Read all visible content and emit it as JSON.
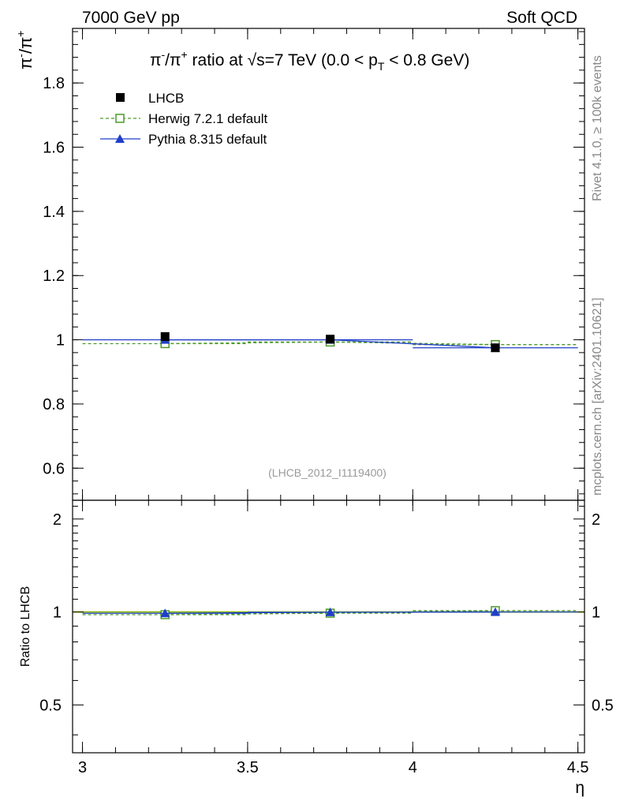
{
  "header": {
    "left": "7000 GeV pp",
    "right": "Soft QCD"
  },
  "side_labels": {
    "rivet": "Rivet 4.1.0, ≥ 100k events",
    "mcplots": "mcplots.cern.ch [arXiv:2401.10621]"
  },
  "chart_data": [
    {
      "type": "line",
      "panel": "main",
      "title_parts": {
        "pre": "π",
        "pre_sup": "-",
        "mid": "/π",
        "mid_sup": "+",
        "text1": " ratio at ",
        "sqrt": "√",
        "text2": "s=7 TeV (0.0 < p",
        "sub": "T",
        "text3": " < 0.8 GeV)"
      },
      "ylabel": {
        "pi": "π",
        "minus": "-",
        "slash_pi": "/π",
        "plus": "+"
      },
      "annotation": "(LHCB_2012_I1119400)",
      "xlim": [
        2.97,
        4.52
      ],
      "ylim": [
        0.5,
        1.97
      ],
      "yticks": [
        0.6,
        0.8,
        1.0,
        1.2,
        1.4,
        1.6,
        1.8
      ],
      "ytick_labels": [
        "0.6",
        "0.8",
        "1",
        "1.2",
        "1.4",
        "1.6",
        "1.8"
      ],
      "x": [
        3.25,
        3.75,
        4.25
      ],
      "xerr": [
        0.25,
        0.25,
        0.25
      ],
      "legend": [
        "LHCB",
        "Herwig 7.2.1 default",
        "Pythia 8.315 default"
      ],
      "series": [
        {
          "name": "LHCB",
          "values": [
            1.01,
            1.002,
            0.975
          ],
          "color": "#000000",
          "marker": "filled-square"
        },
        {
          "name": "Herwig 7.2.1 default",
          "values": [
            0.988,
            0.993,
            0.985
          ],
          "color": "#4c9a2a",
          "marker": "open-square",
          "line": "dashed"
        },
        {
          "name": "Pythia 8.315 default",
          "values": [
            1.0,
            1.0,
            0.975
          ],
          "color": "#1f3ec8",
          "marker": "filled-triangle",
          "line": "solid"
        }
      ]
    },
    {
      "type": "line",
      "panel": "ratio",
      "ylabel": "Ratio to LHCB",
      "xlabel": "η",
      "xlim": [
        2.97,
        4.52
      ],
      "ylim": [
        0.35,
        2.3
      ],
      "yticks": [
        0.5,
        1.0,
        2.0
      ],
      "ytick_labels": [
        "0.5",
        "1",
        "2"
      ],
      "xticks": [
        3.0,
        3.5,
        4.0,
        4.5
      ],
      "xtick_labels": [
        "3",
        "3.5",
        "4",
        "4.5"
      ],
      "x": [
        3.25,
        3.75,
        4.25
      ],
      "band_color": "#ccff33",
      "series": [
        {
          "name": "Herwig 7.2.1 default",
          "values": [
            0.98,
            0.991,
            1.01
          ],
          "color": "#4c9a2a",
          "marker": "open-square",
          "line": "dashed"
        },
        {
          "name": "Pythia 8.315 default",
          "values": [
            0.99,
            0.998,
            1.0
          ],
          "color": "#1f3ec8",
          "marker": "filled-triangle",
          "line": "solid"
        }
      ]
    }
  ]
}
